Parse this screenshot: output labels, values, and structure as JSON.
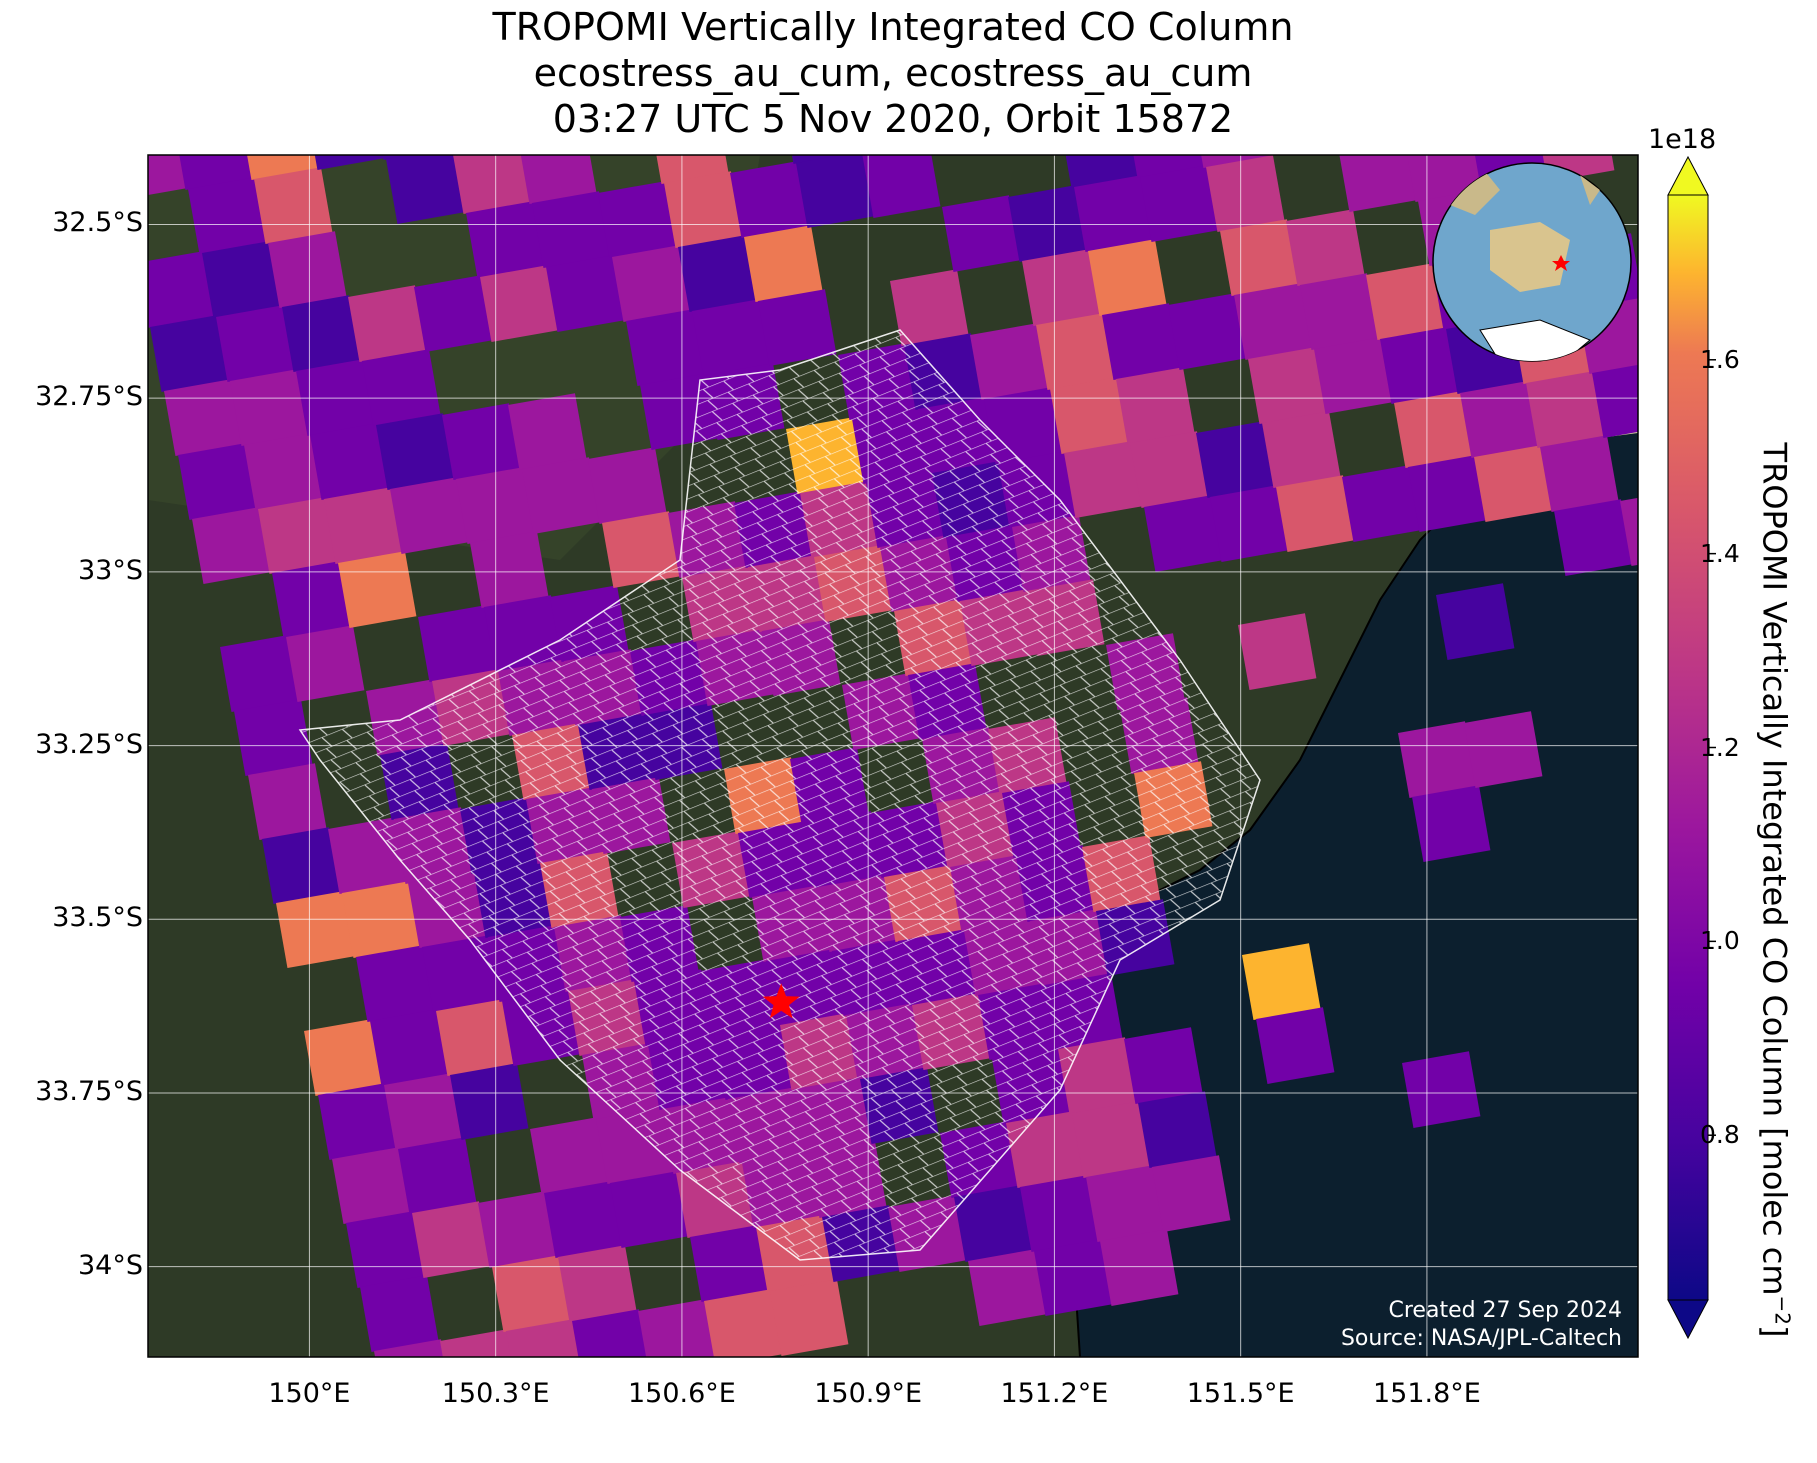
{
  "title": {
    "line1": "TROPOMI Vertically Integrated CO Column",
    "line2": "ecostress_au_cum, ecostress_au_cum",
    "line3": "03:27 UTC 5 Nov 2020, Orbit 15872"
  },
  "map": {
    "extent": {
      "lon_min": 149.74,
      "lon_max": 152.14,
      "lat_min": -34.13,
      "lat_max": -32.4
    },
    "y_ticks": [
      {
        "lat": -32.5,
        "label": "32.5°S"
      },
      {
        "lat": -32.75,
        "label": "32.75°S"
      },
      {
        "lat": -33.0,
        "label": "33°S"
      },
      {
        "lat": -33.25,
        "label": "33.25°S"
      },
      {
        "lat": -33.5,
        "label": "33.5°S"
      },
      {
        "lat": -33.75,
        "label": "33.75°S"
      },
      {
        "lat": -34.0,
        "label": "34°S"
      }
    ],
    "x_ticks": [
      {
        "lon": 150.0,
        "label": "150°E"
      },
      {
        "lon": 150.3,
        "label": "150.3°E"
      },
      {
        "lon": 150.6,
        "label": "150.6°E"
      },
      {
        "lon": 150.9,
        "label": "150.9°E"
      },
      {
        "lon": 151.2,
        "label": "151.2°E"
      },
      {
        "lon": 151.5,
        "label": "151.5°E"
      },
      {
        "lon": 151.8,
        "label": "151.8°E"
      }
    ],
    "gridlines": true,
    "background": "satellite imagery",
    "site_marker": {
      "lon": 150.76,
      "lat": -33.62,
      "icon": "star-icon",
      "color": "#ff0000"
    },
    "inset_globe": {
      "icon": "globe-icon",
      "marker_color": "#ff0000"
    }
  },
  "colorbar": {
    "label": "TROPOMI Vertically Integrated CO Column [molec cm",
    "label_exp": "−2",
    "label_end": "]",
    "exponent": "1e18",
    "min": 0.63,
    "max": 1.77,
    "colormap": "plasma",
    "ticks": [
      {
        "value": 0.8,
        "label": "0.8"
      },
      {
        "value": 1.0,
        "label": "1.0"
      },
      {
        "value": 1.2,
        "label": "1.2"
      },
      {
        "value": 1.4,
        "label": "1.4"
      },
      {
        "value": 1.6,
        "label": "1.6"
      }
    ]
  },
  "credits": {
    "created": "Created 27 Sep 2024",
    "source": "Source: NASA/JPL-Caltech"
  },
  "colors": {
    "ocean": "#0c1f2e",
    "land": "#2e3a26",
    "gridline": "#ffffff",
    "footprint": "#ffffff"
  }
}
